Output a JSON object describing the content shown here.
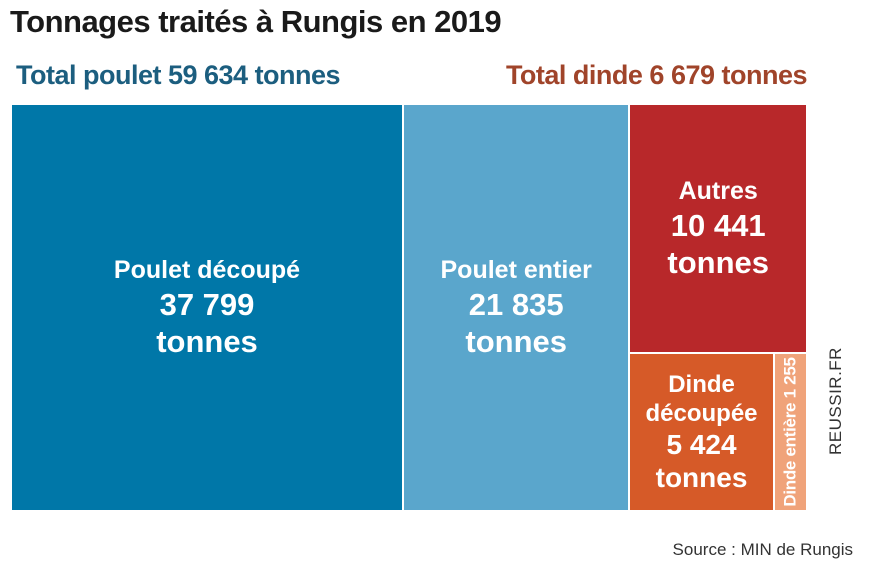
{
  "title": "Tonnages traités à Rungis en 2019",
  "totals": {
    "chicken": "Total poulet 59 634 tonnes",
    "turkey": "Total dinde 6 679 tonnes"
  },
  "colors": {
    "chicken_cut": "#0077a8",
    "chicken_whole": "#5aa6cc",
    "others": "#b8282a",
    "turkey_cut": "#d65a28",
    "turkey_whole": "#f0a37a",
    "total_chicken_text": "#1c5e7f",
    "total_turkey_text": "#a0442a"
  },
  "chart_data": {
    "type": "treemap",
    "unit": "tonnes",
    "items": [
      {
        "key": "chicken_cut",
        "label": "Poulet découpé",
        "value_text": "37 799",
        "value": 37799,
        "unit": "tonnes",
        "group": "poulet"
      },
      {
        "key": "chicken_whole",
        "label": "Poulet entier",
        "value_text": "21 835",
        "value": 21835,
        "unit": "tonnes",
        "group": "poulet"
      },
      {
        "key": "others",
        "label": "Autres",
        "value_text": "10 441",
        "value": 10441,
        "unit": "tonnes",
        "group": "autres"
      },
      {
        "key": "turkey_cut",
        "label": "Dinde découpée",
        "label_line1": "Dinde",
        "label_line2": "découpée",
        "value_text": "5 424",
        "value": 5424,
        "unit": "tonnes",
        "group": "dinde"
      },
      {
        "key": "turkey_whole",
        "label": "Dinde entière 1 255",
        "value": 1255,
        "group": "dinde"
      }
    ]
  },
  "credit": "REUSSIR.FR",
  "source": "Source : MIN de Rungis"
}
